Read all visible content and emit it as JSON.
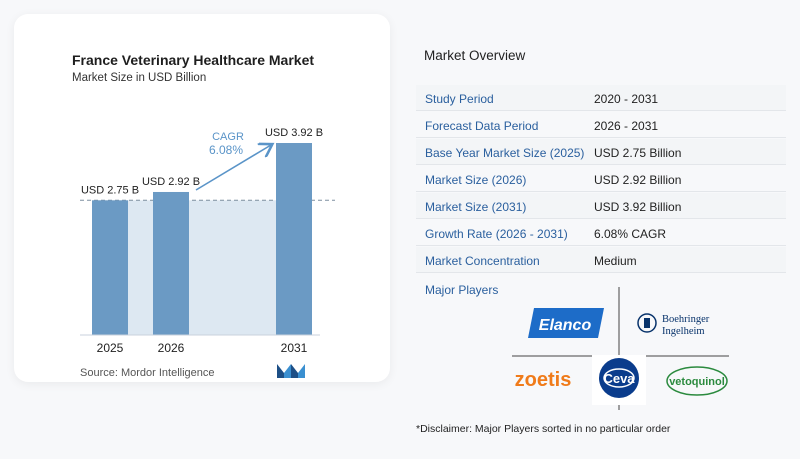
{
  "chart": {
    "title": "France Veterinary Healthcare Market",
    "subtitle": "Market Size in USD Billion",
    "cagr_label": "CAGR",
    "cagr_value": "6.08%",
    "source": "Source:  Mordor Intelligence"
  },
  "chart_data": {
    "type": "bar",
    "title": "France Veterinary Healthcare Market",
    "subtitle": "Market Size in USD Billion",
    "categories": [
      "2025",
      "2026",
      "2031"
    ],
    "values": [
      2.75,
      2.92,
      3.92
    ],
    "data_labels": [
      "USD 2.75 B",
      "USD 2.92 B",
      "USD 3.92 B"
    ],
    "annotation": "CAGR 6.08%",
    "grid": false,
    "colors": {
      "bar": "#6b9ac4",
      "bar_dark": "#5585b5",
      "fill": "#dde8f2",
      "arrow": "#5a94c8"
    }
  },
  "overview": {
    "title": "Market Overview",
    "rows": [
      {
        "label": "Study Period",
        "value": "2020 - 2031"
      },
      {
        "label": "Forecast Data Period",
        "value": "2026 - 2031"
      },
      {
        "label": "Base Year Market Size (2025)",
        "value": "USD 2.75 Billion"
      },
      {
        "label": "Market Size (2026)",
        "value": "USD 2.92 Billion"
      },
      {
        "label": "Market Size (2031)",
        "value": "USD 3.92 Billion"
      },
      {
        "label": "Growth Rate (2026 - 2031)",
        "value": "6.08% CAGR"
      },
      {
        "label": "Market Concentration",
        "value": "Medium"
      }
    ],
    "players_title": "Major Players",
    "players": [
      "Elanco",
      "Boehringer Ingelheim",
      "zoetis",
      "Ceva",
      "vetoquinol"
    ],
    "disclaimer": "*Disclaimer: Major Players sorted in no particular order"
  }
}
